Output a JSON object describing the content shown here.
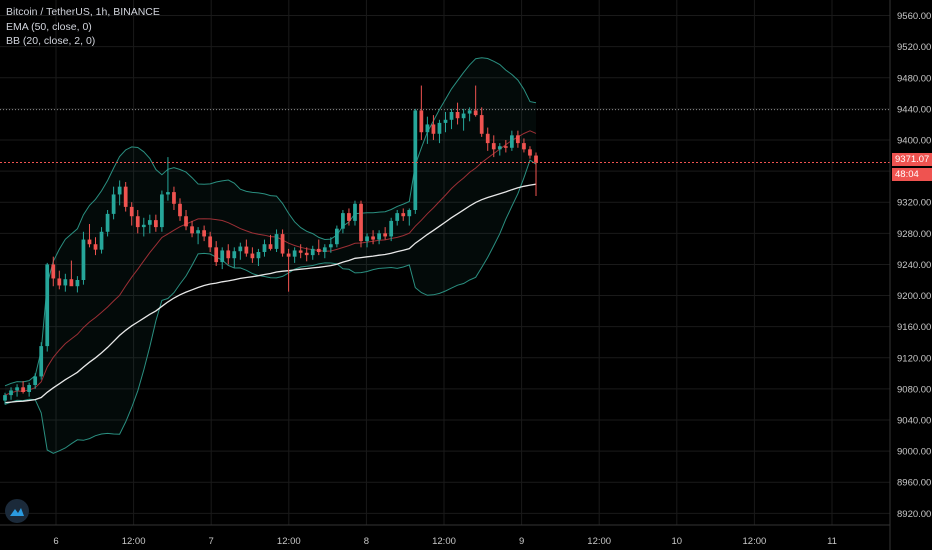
{
  "legend": {
    "symbol": "Bitcoin / TetherUS, 1h, BINANCE",
    "ema": "EMA (50, close, 0)",
    "bb": "BB (20, close, 2, 0)"
  },
  "price_label": {
    "price": "9371.07",
    "countdown": "48:04"
  },
  "colors": {
    "background": "#000000",
    "grid": "#1a1a1a",
    "up": "#26a69a",
    "down": "#ef5350",
    "bb_band": "#2a8f80",
    "bb_basis": "#9c2f35",
    "ema": "#e8e8e8",
    "axis_text": "#c8c8c8",
    "last_price": "#ef5350"
  },
  "chart_data": {
    "type": "candlestick",
    "y_ticks": [
      "9560.00",
      "9520.00",
      "9480.00",
      "9440.00",
      "9400.00",
      "9360.00",
      "9320.00",
      "9280.00",
      "9240.00",
      "9200.00",
      "9160.00",
      "9120.00",
      "9080.00",
      "9040.00",
      "9000.00",
      "8960.00",
      "8920.00"
    ],
    "x_ticks": [
      "6",
      "12:00",
      "7",
      "12:00",
      "8",
      "12:00",
      "9",
      "12:00",
      "10",
      "12:00",
      "11"
    ],
    "ylim": [
      8905,
      9580
    ],
    "last_price": 9371.07,
    "dotted_level": 9439,
    "candles": [
      [
        9065,
        9075,
        9060,
        9072
      ],
      [
        9072,
        9082,
        9066,
        9078
      ],
      [
        9078,
        9086,
        9070,
        9082
      ],
      [
        9082,
        9090,
        9074,
        9076
      ],
      [
        9076,
        9088,
        9070,
        9085
      ],
      [
        9085,
        9100,
        9080,
        9096
      ],
      [
        9096,
        9140,
        9092,
        9135
      ],
      [
        9135,
        9242,
        9128,
        9240
      ],
      [
        9240,
        9250,
        9212,
        9222
      ],
      [
        9222,
        9232,
        9208,
        9213
      ],
      [
        9213,
        9228,
        9205,
        9221
      ],
      [
        9221,
        9245,
        9214,
        9212
      ],
      [
        9212,
        9225,
        9204,
        9220
      ],
      [
        9220,
        9282,
        9214,
        9272
      ],
      [
        9272,
        9292,
        9262,
        9266
      ],
      [
        9266,
        9275,
        9252,
        9259
      ],
      [
        9259,
        9288,
        9254,
        9282
      ],
      [
        9282,
        9310,
        9276,
        9305
      ],
      [
        9305,
        9340,
        9298,
        9330
      ],
      [
        9330,
        9348,
        9316,
        9340
      ],
      [
        9340,
        9346,
        9308,
        9314
      ],
      [
        9314,
        9320,
        9290,
        9302
      ],
      [
        9302,
        9310,
        9280,
        9288
      ],
      [
        9288,
        9300,
        9276,
        9291
      ],
      [
        9291,
        9304,
        9280,
        9297
      ],
      [
        9297,
        9304,
        9282,
        9288
      ],
      [
        9288,
        9335,
        9282,
        9330
      ],
      [
        9330,
        9378,
        9322,
        9333
      ],
      [
        9333,
        9340,
        9310,
        9318
      ],
      [
        9318,
        9325,
        9296,
        9302
      ],
      [
        9302,
        9310,
        9284,
        9289
      ],
      [
        9289,
        9296,
        9275,
        9280
      ],
      [
        9280,
        9288,
        9266,
        9284
      ],
      [
        9284,
        9290,
        9270,
        9276
      ],
      [
        9276,
        9282,
        9256,
        9262
      ],
      [
        9262,
        9270,
        9238,
        9243
      ],
      [
        9243,
        9262,
        9234,
        9258
      ],
      [
        9258,
        9266,
        9240,
        9248
      ],
      [
        9248,
        9262,
        9236,
        9257
      ],
      [
        9257,
        9268,
        9246,
        9263
      ],
      [
        9263,
        9272,
        9250,
        9254
      ],
      [
        9254,
        9262,
        9242,
        9248
      ],
      [
        9248,
        9260,
        9238,
        9256
      ],
      [
        9256,
        9272,
        9250,
        9266
      ],
      [
        9266,
        9278,
        9258,
        9260
      ],
      [
        9260,
        9285,
        9256,
        9279
      ],
      [
        9279,
        9285,
        9250,
        9254
      ],
      [
        9254,
        9260,
        9205,
        9250
      ],
      [
        9250,
        9262,
        9242,
        9258
      ],
      [
        9258,
        9266,
        9248,
        9255
      ],
      [
        9255,
        9262,
        9244,
        9252
      ],
      [
        9252,
        9264,
        9246,
        9260
      ],
      [
        9260,
        9272,
        9252,
        9256
      ],
      [
        9256,
        9266,
        9248,
        9262
      ],
      [
        9262,
        9275,
        9255,
        9266
      ],
      [
        9266,
        9290,
        9262,
        9286
      ],
      [
        9286,
        9310,
        9280,
        9306
      ],
      [
        9306,
        9312,
        9290,
        9296
      ],
      [
        9296,
        9322,
        9290,
        9318
      ],
      [
        9318,
        9322,
        9262,
        9270
      ],
      [
        9270,
        9280,
        9262,
        9276
      ],
      [
        9276,
        9284,
        9266,
        9272
      ],
      [
        9272,
        9284,
        9266,
        9280
      ],
      [
        9280,
        9288,
        9272,
        9276
      ],
      [
        9276,
        9300,
        9270,
        9296
      ],
      [
        9296,
        9310,
        9290,
        9306
      ],
      [
        9306,
        9312,
        9296,
        9302
      ],
      [
        9302,
        9312,
        9290,
        9310
      ],
      [
        9310,
        9440,
        9305,
        9438
      ],
      [
        9438,
        9470,
        9400,
        9410
      ],
      [
        9410,
        9430,
        9395,
        9420
      ],
      [
        9420,
        9432,
        9400,
        9408
      ],
      [
        9408,
        9426,
        9396,
        9422
      ],
      [
        9422,
        9436,
        9410,
        9426
      ],
      [
        9426,
        9440,
        9414,
        9436
      ],
      [
        9436,
        9448,
        9420,
        9428
      ],
      [
        9428,
        9440,
        9412,
        9434
      ],
      [
        9434,
        9442,
        9424,
        9438
      ],
      [
        9438,
        9470,
        9430,
        9432
      ],
      [
        9432,
        9442,
        9404,
        9408
      ],
      [
        9408,
        9416,
        9386,
        9396
      ],
      [
        9396,
        9406,
        9378,
        9388
      ],
      [
        9388,
        9396,
        9380,
        9392
      ],
      [
        9392,
        9400,
        9384,
        9390
      ],
      [
        9390,
        9412,
        9386,
        9406
      ],
      [
        9406,
        9412,
        9390,
        9396
      ],
      [
        9396,
        9402,
        9384,
        9388
      ],
      [
        9388,
        9392,
        9376,
        9380
      ],
      [
        9380,
        9384,
        9328,
        9371
      ]
    ]
  }
}
